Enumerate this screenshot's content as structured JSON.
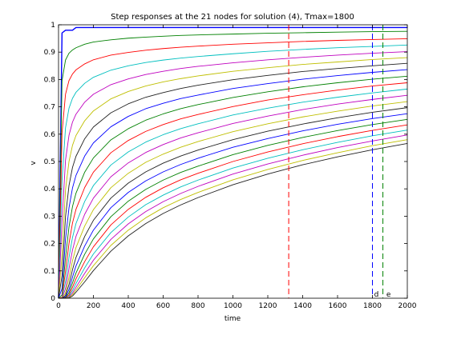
{
  "chart_data": {
    "type": "line",
    "title": "Step responses at the 21 nodes for solution (4), Tmax=1800",
    "xlabel": "time",
    "ylabel": "v",
    "xlim": [
      0,
      2000
    ],
    "ylim": [
      0,
      1
    ],
    "xticks": [
      "0",
      "200",
      "400",
      "600",
      "800",
      "1000",
      "1200",
      "1400",
      "1600",
      "1800",
      "2000"
    ],
    "yticks": [
      "0",
      "0.1",
      "0.2",
      "0.3",
      "0.4",
      "0.5",
      "0.6",
      "0.7",
      "0.8",
      "0.9",
      "1"
    ],
    "grid": false,
    "legend": "none",
    "x": [
      0,
      20,
      40,
      60,
      80,
      100,
      150,
      200,
      300,
      400,
      500,
      600,
      700,
      800,
      1000,
      1200,
      1400,
      1600,
      1800,
      2000
    ],
    "series": [
      {
        "color": "#0000ff",
        "values": [
          0,
          0.97,
          0.98,
          0.98,
          0.98,
          0.99,
          0.99,
          0.99,
          0.99,
          0.99,
          0.99,
          0.99,
          0.99,
          0.99,
          0.99,
          0.99,
          0.99,
          0.99,
          0.99,
          0.99
        ]
      },
      {
        "color": "#008000",
        "values": [
          0,
          0.795,
          0.871,
          0.896,
          0.908,
          0.916,
          0.929,
          0.937,
          0.945,
          0.951,
          0.955,
          0.958,
          0.961,
          0.963,
          0.966,
          0.969,
          0.971,
          0.973,
          0.975,
          0.976
        ]
      },
      {
        "color": "#ff0000",
        "values": [
          0,
          0.605,
          0.746,
          0.796,
          0.82,
          0.835,
          0.857,
          0.872,
          0.889,
          0.899,
          0.907,
          0.913,
          0.918,
          0.922,
          0.929,
          0.934,
          0.939,
          0.943,
          0.946,
          0.949
        ]
      },
      {
        "color": "#00bfbf",
        "values": [
          0,
          0.43,
          0.623,
          0.695,
          0.731,
          0.753,
          0.786,
          0.808,
          0.834,
          0.85,
          0.862,
          0.871,
          0.878,
          0.884,
          0.894,
          0.903,
          0.91,
          0.916,
          0.921,
          0.926
        ]
      },
      {
        "color": "#bf00bf",
        "values": [
          0,
          0.281,
          0.505,
          0.596,
          0.644,
          0.673,
          0.717,
          0.746,
          0.781,
          0.802,
          0.818,
          0.83,
          0.84,
          0.848,
          0.861,
          0.872,
          0.881,
          0.889,
          0.896,
          0.902
        ]
      },
      {
        "color": "#bfbf00",
        "values": [
          0,
          0.163,
          0.396,
          0.5,
          0.559,
          0.595,
          0.649,
          0.685,
          0.729,
          0.756,
          0.776,
          0.791,
          0.803,
          0.813,
          0.83,
          0.843,
          0.855,
          0.864,
          0.873,
          0.88
        ]
      },
      {
        "color": "#202020",
        "values": [
          0,
          0.082,
          0.298,
          0.412,
          0.478,
          0.519,
          0.583,
          0.626,
          0.678,
          0.711,
          0.735,
          0.752,
          0.767,
          0.779,
          0.799,
          0.815,
          0.829,
          0.84,
          0.85,
          0.859
        ]
      },
      {
        "color": "#0000ff",
        "values": [
          0,
          0.035,
          0.216,
          0.331,
          0.403,
          0.449,
          0.52,
          0.568,
          0.627,
          0.665,
          0.693,
          0.713,
          0.73,
          0.743,
          0.767,
          0.785,
          0.801,
          0.814,
          0.826,
          0.836
        ]
      },
      {
        "color": "#008000",
        "values": [
          0,
          0.012,
          0.149,
          0.261,
          0.335,
          0.384,
          0.461,
          0.513,
          0.579,
          0.62,
          0.651,
          0.674,
          0.693,
          0.708,
          0.734,
          0.755,
          0.773,
          0.788,
          0.801,
          0.812
        ]
      },
      {
        "color": "#ff0000",
        "values": [
          0,
          0.003,
          0.098,
          0.2,
          0.275,
          0.325,
          0.405,
          0.461,
          0.532,
          0.577,
          0.61,
          0.635,
          0.656,
          0.672,
          0.701,
          0.725,
          0.744,
          0.761,
          0.776,
          0.788
        ]
      },
      {
        "color": "#00bfbf",
        "values": [
          0,
          0.001,
          0.061,
          0.149,
          0.222,
          0.273,
          0.354,
          0.412,
          0.487,
          0.535,
          0.571,
          0.598,
          0.62,
          0.638,
          0.67,
          0.695,
          0.717,
          0.735,
          0.751,
          0.765
        ]
      },
      {
        "color": "#bf00bf",
        "values": [
          0,
          0,
          0.035,
          0.108,
          0.176,
          0.226,
          0.307,
          0.366,
          0.444,
          0.495,
          0.533,
          0.562,
          0.586,
          0.605,
          0.639,
          0.666,
          0.69,
          0.71,
          0.727,
          0.742
        ]
      },
      {
        "color": "#bfbf00",
        "values": [
          0,
          0,
          0.019,
          0.075,
          0.137,
          0.185,
          0.264,
          0.324,
          0.404,
          0.457,
          0.497,
          0.527,
          0.552,
          0.573,
          0.609,
          0.638,
          0.663,
          0.684,
          0.703,
          0.719
        ]
      },
      {
        "color": "#202020",
        "values": [
          0,
          0,
          0.01,
          0.05,
          0.104,
          0.149,
          0.226,
          0.285,
          0.366,
          0.421,
          0.462,
          0.494,
          0.52,
          0.542,
          0.58,
          0.611,
          0.637,
          0.66,
          0.68,
          0.697
        ]
      },
      {
        "color": "#0000ff",
        "values": [
          0,
          0,
          0.005,
          0.032,
          0.077,
          0.118,
          0.191,
          0.249,
          0.331,
          0.387,
          0.429,
          0.462,
          0.489,
          0.512,
          0.552,
          0.584,
          0.612,
          0.636,
          0.657,
          0.675
        ]
      },
      {
        "color": "#008000",
        "values": [
          0,
          0,
          0.002,
          0.02,
          0.056,
          0.092,
          0.161,
          0.217,
          0.298,
          0.355,
          0.398,
          0.432,
          0.46,
          0.483,
          0.525,
          0.559,
          0.588,
          0.613,
          0.635,
          0.654
        ]
      },
      {
        "color": "#ff0000",
        "values": [
          0,
          0,
          0.001,
          0.012,
          0.04,
          0.071,
          0.134,
          0.188,
          0.268,
          0.325,
          0.369,
          0.404,
          0.433,
          0.457,
          0.5,
          0.535,
          0.565,
          0.591,
          0.614,
          0.634
        ]
      },
      {
        "color": "#00bfbf",
        "values": [
          0,
          0,
          0,
          0.007,
          0.028,
          0.054,
          0.111,
          0.162,
          0.24,
          0.297,
          0.342,
          0.377,
          0.407,
          0.432,
          0.476,
          0.512,
          0.543,
          0.57,
          0.594,
          0.615
        ]
      },
      {
        "color": "#bf00bf",
        "values": [
          0,
          0,
          0,
          0.004,
          0.019,
          0.04,
          0.091,
          0.139,
          0.215,
          0.272,
          0.317,
          0.353,
          0.383,
          0.409,
          0.454,
          0.491,
          0.523,
          0.551,
          0.575,
          0.597
        ]
      },
      {
        "color": "#bfbf00",
        "values": [
          0,
          0,
          0,
          0.002,
          0.013,
          0.03,
          0.075,
          0.119,
          0.193,
          0.249,
          0.294,
          0.331,
          0.361,
          0.387,
          0.433,
          0.471,
          0.504,
          0.532,
          0.558,
          0.58
        ]
      },
      {
        "color": "#202020",
        "values": [
          0,
          0,
          0,
          0.001,
          0.008,
          0.022,
          0.06,
          0.101,
          0.172,
          0.228,
          0.273,
          0.31,
          0.341,
          0.368,
          0.415,
          0.454,
          0.488,
          0.517,
          0.543,
          0.566
        ]
      }
    ],
    "vlines": [
      {
        "x": 1320,
        "color": "#ff0000"
      },
      {
        "x": 1800,
        "color": "#0000ff"
      },
      {
        "x": 1860,
        "color": "#008000"
      }
    ],
    "annotations": [
      {
        "text": "d",
        "x": 1810,
        "y": 0
      },
      {
        "text": "e",
        "x": 1880,
        "y": 0
      }
    ]
  }
}
